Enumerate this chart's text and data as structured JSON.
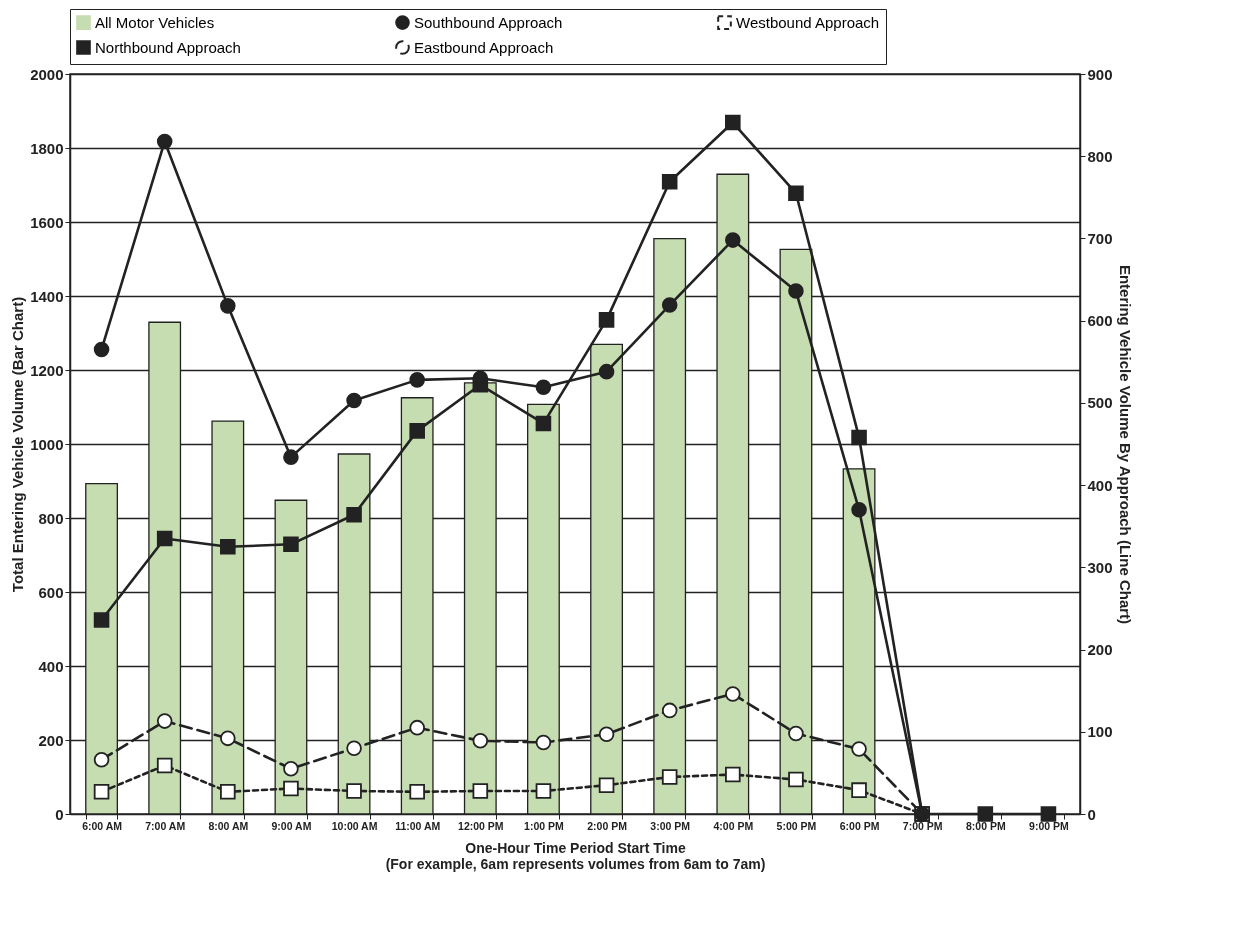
{
  "chart_data": {
    "type": "bar",
    "categories": [
      "6:00 AM",
      "7:00 AM",
      "8:00 AM",
      "9:00 AM",
      "10:00 AM",
      "11:00 AM",
      "12:00 PM",
      "1:00 PM",
      "2:00 PM",
      "3:00 PM",
      "4:00 PM",
      "5:00 PM",
      "6:00 PM",
      "7:00 PM",
      "8:00 PM",
      "9:00 PM"
    ],
    "series": [
      {
        "name": "All Motor Vehicles",
        "color": "#c6dcb1",
        "values": [
          893,
          1329,
          1062,
          848,
          973,
          1125,
          1165,
          1107,
          1269,
          1555,
          1729,
          1526,
          933,
          0,
          0,
          0
        ]
      },
      {
        "name": "Southbound Approach",
        "type": "line",
        "axis": "y2",
        "color": "#222222",
        "marker": "circle",
        "line_style": "solid",
        "values": [
          565,
          818,
          618,
          434,
          503,
          528,
          530,
          519,
          538,
          619,
          698,
          636,
          370,
          0,
          null,
          null
        ]
      },
      {
        "name": "Westbound Approach",
        "type": "line",
        "axis": "y2",
        "color": "#222222",
        "marker": "square",
        "line_style": "dotted",
        "values": [
          27,
          59,
          27,
          31,
          28,
          27,
          28,
          28,
          35,
          45,
          48,
          42,
          29,
          0,
          null,
          null
        ]
      },
      {
        "name": "Northbound Approach",
        "type": "line",
        "axis": "y2",
        "color": "#222222",
        "marker": "square",
        "line_style": "solid",
        "values": [
          236,
          335,
          325,
          328,
          364,
          466,
          522,
          475,
          601,
          769,
          841,
          755,
          458,
          0,
          0,
          0
        ]
      },
      {
        "name": "Eastbound Approach",
        "type": "line",
        "axis": "y2",
        "color": "#222222",
        "marker": "circle",
        "line_style": "dashed",
        "values": [
          66,
          113,
          92,
          55,
          80,
          105,
          89,
          87,
          97,
          126,
          146,
          98,
          79,
          0,
          null,
          null
        ]
      }
    ],
    "xlabel": "One-Hour Time Period Start Time",
    "ylabel": "Total Entering Vehicle Volume (Bar Chart)",
    "y2label": "Entering Vehicle Volume By Approach (Line Chart)",
    "annotations": [
      "(For example, 6am represents volumes from 6am to 7am)"
    ],
    "ylim": [
      0,
      2000
    ],
    "yticks": [
      0,
      200,
      400,
      600,
      800,
      1000,
      1200,
      1400,
      1600,
      1800,
      2000
    ],
    "y2lim": [
      0,
      900
    ],
    "y2ticks": [
      0,
      100,
      200,
      300,
      400,
      500,
      600,
      700,
      800,
      900
    ],
    "grid": "y",
    "legend": "top"
  }
}
